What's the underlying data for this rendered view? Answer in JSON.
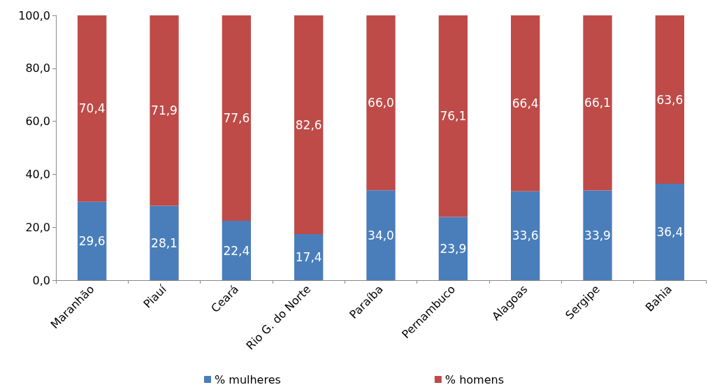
{
  "chart_data": {
    "type": "bar",
    "stacked": true,
    "categories": [
      "Maranhão",
      "Piauí",
      "Ceará",
      "Rio G. do Norte",
      "Paraíba",
      "Pernambuco",
      "Alagoas",
      "Sergipe",
      "Bahia"
    ],
    "series": [
      {
        "name": "% mulheres",
        "color": "#4a7ebb",
        "values": [
          29.6,
          28.1,
          22.4,
          17.4,
          34.0,
          23.9,
          33.6,
          33.9,
          36.4
        ],
        "value_labels": [
          "29,6",
          "28,1",
          "22,4",
          "17,4",
          "34,0",
          "23,9",
          "33,6",
          "33,9",
          "36,4"
        ]
      },
      {
        "name": "% homens",
        "color": "#be4b48",
        "values": [
          70.4,
          71.9,
          77.6,
          82.6,
          66.0,
          76.1,
          66.4,
          66.1,
          63.6
        ],
        "value_labels": [
          "70,4",
          "71,9",
          "77,6",
          "82,6",
          "66,0",
          "76,1",
          "66,4",
          "66,1",
          "63,6"
        ]
      }
    ],
    "ylim": [
      0,
      100
    ],
    "yticks": [
      {
        "value": 0,
        "label": "0,0"
      },
      {
        "value": 20,
        "label": "20,0"
      },
      {
        "value": 40,
        "label": "40,0"
      },
      {
        "value": 60,
        "label": "60,0"
      },
      {
        "value": 80,
        "label": "80,0"
      },
      {
        "value": 100,
        "label": "100,0"
      }
    ],
    "grid": false,
    "legend": "bottom"
  }
}
